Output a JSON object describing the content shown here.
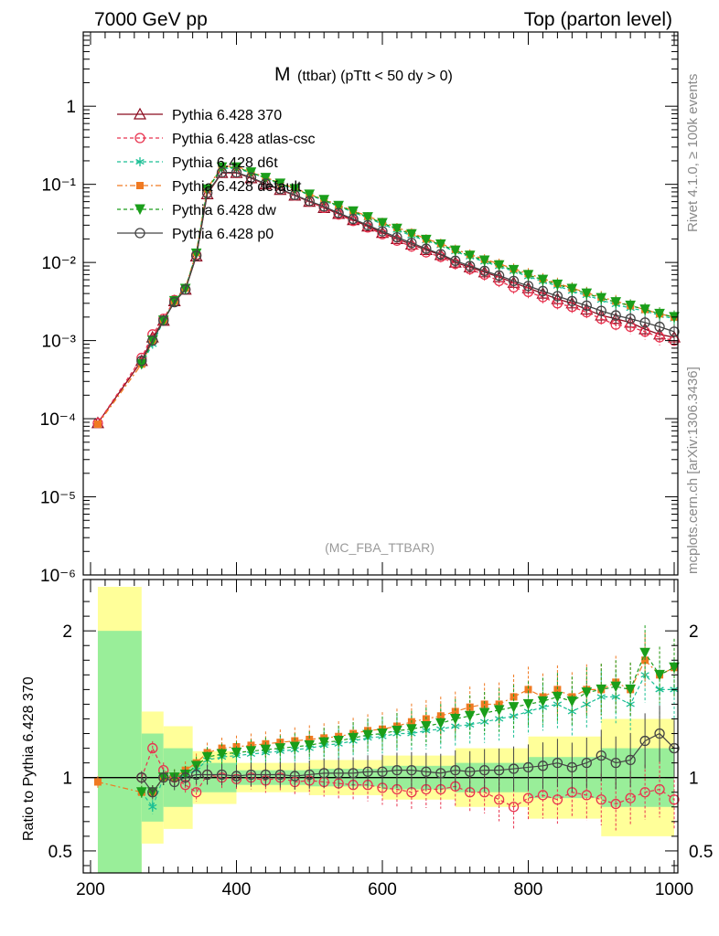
{
  "header": {
    "left": "7000 GeV pp",
    "right": "Top (parton level)"
  },
  "side_labels": {
    "rivet": "Rivet 4.1.0, ≥ 100k events",
    "mcplots": "mcplots.cern.ch [arXiv:1306.3436]"
  },
  "chart_data": {
    "type": "line",
    "title_main": "M",
    "title_sub": "(ttbar) (pTtt < 50 dy > 0)",
    "watermark": "(MC_FBA_TTBAR)",
    "xlim": [
      190,
      1005
    ],
    "main_ylim_log10": [
      -6,
      0.95
    ],
    "main_yticks": [
      {
        "label": "1",
        "value": 1
      },
      {
        "label": "10⁻¹",
        "value": 0.1
      },
      {
        "label": "10⁻²",
        "value": 0.01
      },
      {
        "label": "10⁻³",
        "value": 0.001
      },
      {
        "label": "10⁻⁴",
        "value": 0.0001
      },
      {
        "label": "10⁻⁵",
        "value": 1e-05
      },
      {
        "label": "10⁻⁶",
        "value": 1e-06
      }
    ],
    "ratio_ylabel": "Ratio to Pythia 6.428 370",
    "ratio_ylim": [
      0.35,
      2.35
    ],
    "ratio_yticks": [
      {
        "label": "2",
        "value": 2
      },
      {
        "label": "1",
        "value": 1
      },
      {
        "label": "0.5",
        "value": 0.5
      }
    ],
    "xticks": [
      {
        "label": "200",
        "value": 200
      },
      {
        "label": "400",
        "value": 400
      },
      {
        "label": "600",
        "value": 600
      },
      {
        "label": "800",
        "value": 800
      },
      {
        "label": "1000",
        "value": 1000
      }
    ],
    "x": [
      210,
      270,
      285,
      300,
      315,
      330,
      345,
      360,
      380,
      400,
      420,
      440,
      460,
      480,
      500,
      520,
      540,
      560,
      580,
      600,
      620,
      640,
      660,
      680,
      700,
      720,
      740,
      760,
      780,
      800,
      820,
      840,
      860,
      880,
      900,
      920,
      940,
      960,
      980,
      1000
    ],
    "series": [
      {
        "name": "Pythia 6.428 370",
        "color": "#8b0a1e",
        "marker": "triangle",
        "dash": "solid",
        "y": [
          8.8e-05,
          0.00055,
          0.0011,
          0.0018,
          0.0032,
          0.0045,
          0.012,
          0.075,
          0.14,
          0.14,
          0.12,
          0.1,
          0.085,
          0.072,
          0.06,
          0.05,
          0.042,
          0.035,
          0.029,
          0.024,
          0.02,
          0.017,
          0.0145,
          0.0125,
          0.01,
          0.0087,
          0.0075,
          0.0065,
          0.0055,
          0.0047,
          0.004,
          0.0034,
          0.003,
          0.0025,
          0.0021,
          0.0019,
          0.0017,
          0.0014,
          0.0012,
          0.0011
        ]
      },
      {
        "name": "Pythia 6.428 atlas-csc",
        "color": "#e8334f",
        "marker": "circle-open",
        "dash": "4,3",
        "y": [
          8.8e-05,
          0.0006,
          0.0012,
          0.0019,
          0.0033,
          0.0045,
          0.0125,
          0.078,
          0.14,
          0.14,
          0.122,
          0.101,
          0.086,
          0.072,
          0.06,
          0.05,
          0.041,
          0.034,
          0.028,
          0.023,
          0.019,
          0.016,
          0.0135,
          0.0118,
          0.0096,
          0.0082,
          0.007,
          0.0058,
          0.0048,
          0.0042,
          0.0036,
          0.003,
          0.0027,
          0.0023,
          0.0019,
          0.0016,
          0.0015,
          0.0013,
          0.0011,
          0.001
        ]
      },
      {
        "name": "Pythia 6.428 d6t",
        "color": "#1bbf95",
        "marker": "star",
        "dash": "4,3",
        "y": [
          null,
          0.0005,
          0.0009,
          0.0018,
          0.0032,
          0.0046,
          0.013,
          0.085,
          0.16,
          0.16,
          0.14,
          0.12,
          0.1,
          0.086,
          0.073,
          0.062,
          0.052,
          0.044,
          0.037,
          0.031,
          0.026,
          0.022,
          0.019,
          0.0165,
          0.0138,
          0.0118,
          0.0102,
          0.0089,
          0.0077,
          0.0066,
          0.0057,
          0.005,
          0.0043,
          0.0038,
          0.0033,
          0.0029,
          0.0026,
          0.0024,
          0.0021,
          0.0019
        ]
      },
      {
        "name": "Pythia 6.428 default",
        "color": "#f07a22",
        "marker": "square",
        "dash": "6,3,2,3",
        "y": [
          8.5e-05,
          0.0005,
          0.001,
          0.0018,
          0.0032,
          0.0047,
          0.0135,
          0.088,
          0.17,
          0.17,
          0.145,
          0.123,
          0.104,
          0.089,
          0.075,
          0.064,
          0.054,
          0.046,
          0.039,
          0.033,
          0.028,
          0.024,
          0.02,
          0.0175,
          0.0147,
          0.0127,
          0.011,
          0.0096,
          0.0083,
          0.0072,
          0.0062,
          0.0054,
          0.0047,
          0.0041,
          0.0036,
          0.0032,
          0.0028,
          0.0025,
          0.0022,
          0.002
        ]
      },
      {
        "name": "Pythia 6.428 dw",
        "color": "#1a9e1a",
        "marker": "triangle-down",
        "dash": "4,3",
        "y": [
          null,
          0.0005,
          0.001,
          0.0018,
          0.0032,
          0.0046,
          0.013,
          0.086,
          0.165,
          0.165,
          0.142,
          0.121,
          0.102,
          0.087,
          0.074,
          0.063,
          0.053,
          0.045,
          0.038,
          0.032,
          0.027,
          0.023,
          0.0195,
          0.017,
          0.0142,
          0.0122,
          0.0106,
          0.0092,
          0.008,
          0.0069,
          0.006,
          0.0052,
          0.0046,
          0.004,
          0.0035,
          0.0031,
          0.0028,
          0.0025,
          0.0022,
          0.002
        ]
      },
      {
        "name": "Pythia 6.428 p0",
        "color": "#444444",
        "marker": "circle-open",
        "dash": "solid",
        "y": [
          null,
          0.00055,
          0.001,
          0.0018,
          0.0031,
          0.0045,
          0.0122,
          0.077,
          0.142,
          0.142,
          0.122,
          0.102,
          0.087,
          0.073,
          0.061,
          0.052,
          0.043,
          0.036,
          0.03,
          0.025,
          0.021,
          0.0178,
          0.015,
          0.0128,
          0.0105,
          0.009,
          0.0078,
          0.0068,
          0.0058,
          0.005,
          0.0043,
          0.0037,
          0.0032,
          0.0028,
          0.0024,
          0.0021,
          0.0019,
          0.0017,
          0.0015,
          0.0013
        ]
      }
    ],
    "ratio_series": [
      {
        "name": "Pythia 6.428 atlas-csc",
        "y": [
          null,
          1.0,
          1.2,
          1.05,
          1.0,
          0.95,
          0.9,
          1.02,
          1.0,
          0.99,
          1.0,
          0.98,
          1.0,
          0.97,
          0.98,
          0.97,
          0.96,
          0.95,
          0.95,
          0.93,
          0.92,
          0.9,
          0.92,
          0.92,
          0.94,
          0.9,
          0.9,
          0.85,
          0.8,
          0.86,
          0.88,
          0.85,
          0.9,
          0.88,
          0.85,
          0.82,
          0.86,
          0.9,
          0.92,
          0.85
        ]
      },
      {
        "name": "Pythia 6.428 d6t",
        "y": [
          null,
          0.9,
          0.8,
          1.0,
          1.0,
          1.02,
          1.05,
          1.12,
          1.14,
          1.15,
          1.16,
          1.17,
          1.18,
          1.19,
          1.2,
          1.22,
          1.23,
          1.25,
          1.27,
          1.28,
          1.3,
          1.3,
          1.32,
          1.33,
          1.35,
          1.36,
          1.38,
          1.4,
          1.42,
          1.45,
          1.48,
          1.5,
          1.45,
          1.5,
          1.55,
          1.55,
          1.5,
          1.7,
          1.6,
          1.6
        ]
      },
      {
        "name": "Pythia 6.428 default",
        "y": [
          0.97,
          0.9,
          0.9,
          1.0,
          1.0,
          1.05,
          1.1,
          1.17,
          1.2,
          1.21,
          1.22,
          1.23,
          1.24,
          1.25,
          1.26,
          1.27,
          1.28,
          1.3,
          1.32,
          1.33,
          1.35,
          1.38,
          1.4,
          1.42,
          1.45,
          1.48,
          1.5,
          1.5,
          1.55,
          1.6,
          1.55,
          1.6,
          1.55,
          1.6,
          1.6,
          1.65,
          1.6,
          1.8,
          1.7,
          1.75
        ]
      },
      {
        "name": "Pythia 6.428 dw",
        "y": [
          null,
          0.9,
          0.9,
          1.0,
          1.0,
          1.02,
          1.08,
          1.14,
          1.16,
          1.17,
          1.18,
          1.19,
          1.2,
          1.21,
          1.22,
          1.24,
          1.25,
          1.27,
          1.29,
          1.3,
          1.32,
          1.33,
          1.35,
          1.37,
          1.4,
          1.42,
          1.44,
          1.46,
          1.48,
          1.5,
          1.52,
          1.55,
          1.52,
          1.58,
          1.6,
          1.62,
          1.6,
          1.85,
          1.7,
          1.75
        ]
      },
      {
        "name": "Pythia 6.428 p0",
        "y": [
          null,
          1.0,
          0.9,
          1.0,
          0.97,
          1.0,
          1.02,
          1.02,
          1.02,
          1.01,
          1.02,
          1.02,
          1.02,
          1.01,
          1.02,
          1.03,
          1.03,
          1.03,
          1.04,
          1.04,
          1.05,
          1.05,
          1.04,
          1.03,
          1.05,
          1.04,
          1.05,
          1.05,
          1.06,
          1.07,
          1.08,
          1.1,
          1.07,
          1.1,
          1.15,
          1.1,
          1.12,
          1.25,
          1.3,
          1.2
        ]
      }
    ],
    "uncertainty_band": {
      "x": [
        210,
        270,
        300,
        340,
        400,
        500,
        600,
        700,
        800,
        900,
        1000
      ],
      "inner": [
        1.0,
        0.3,
        0.2,
        0.1,
        0.05,
        0.06,
        0.08,
        0.1,
        0.14,
        0.2,
        0.3
      ],
      "outer": [
        1.3,
        0.45,
        0.35,
        0.18,
        0.1,
        0.12,
        0.15,
        0.2,
        0.28,
        0.4,
        0.6
      ]
    }
  }
}
